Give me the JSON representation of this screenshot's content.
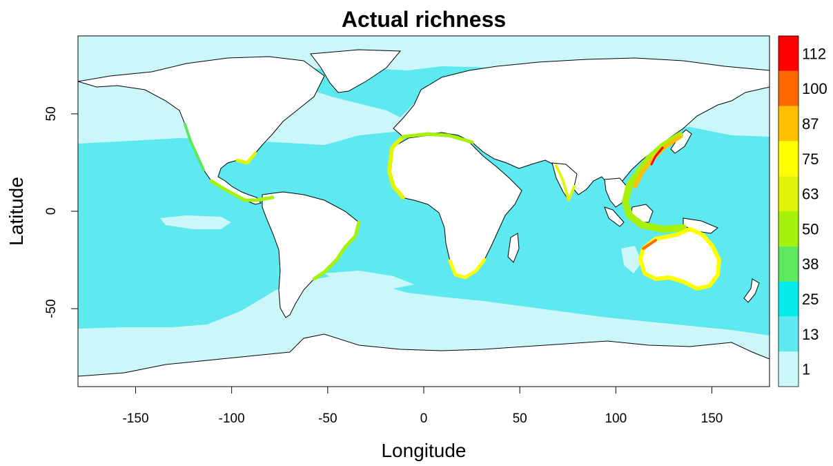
{
  "map": {
    "title": "Actual richness",
    "xlabel": "Longitude",
    "ylabel": "Latitude",
    "x_ticks": [
      -150,
      -100,
      -50,
      0,
      50,
      100,
      150
    ],
    "y_ticks": [
      50,
      0,
      -50
    ],
    "x_range": [
      -180,
      180
    ],
    "y_range": [
      -90,
      90
    ],
    "legend_position": "right",
    "legend": [
      {
        "label": "1",
        "color": "#ccf7fa"
      },
      {
        "label": "13",
        "color": "#5de9ef"
      },
      {
        "label": "25",
        "color": "#08ebeb"
      },
      {
        "label": "38",
        "color": "#5ee85d"
      },
      {
        "label": "50",
        "color": "#a6f20d"
      },
      {
        "label": "63",
        "color": "#e0f50a"
      },
      {
        "label": "75",
        "color": "#ffff00"
      },
      {
        "label": "87",
        "color": "#ffc000"
      },
      {
        "label": "100",
        "color": "#ff6a00"
      },
      {
        "label": "112",
        "color": "#ff0000"
      }
    ],
    "land_color": "#ffffff",
    "border_color": "#000000"
  }
}
